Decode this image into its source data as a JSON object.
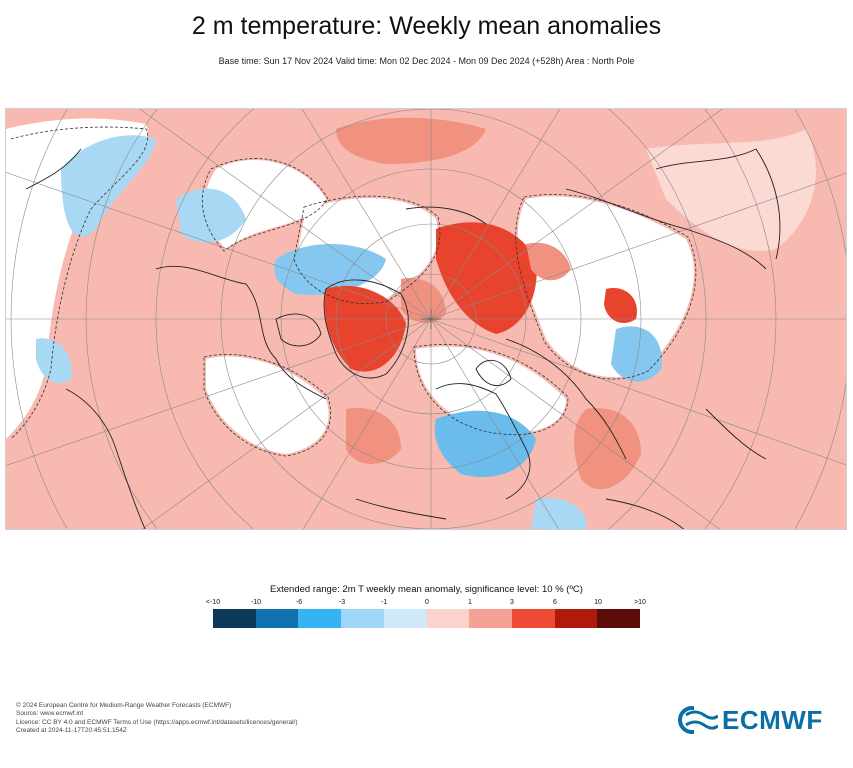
{
  "title": "2 m temperature: Weekly mean anomalies",
  "subtitle": "Base time: Sun 17 Nov 2024 Valid time: Mon 02 Dec 2024 - Mon 09 Dec 2024 (+528h) Area : North Pole",
  "map": {
    "projection": "polar-stereographic",
    "area": "North Pole",
    "colors": {
      "strong_warm": "#e8432d",
      "warm": "#f3a395",
      "mild_warm": "#f9c9c2",
      "neutral": "#ffffff",
      "cool": "#a8d8f4",
      "cold": "#6bbcec"
    }
  },
  "legend": {
    "title": "Extended range: 2m T weekly mean anomaly, significance level: 10 % (ºC)",
    "ticks": [
      "<-10",
      "-10",
      "-6",
      "-3",
      "-1",
      "0",
      "1",
      "3",
      "6",
      "10",
      ">10"
    ],
    "colors": [
      "#0d3a5a",
      "#0f72ae",
      "#35b3f3",
      "#9dd6f6",
      "#cfe9f9",
      "#fcd3cc",
      "#f6a195",
      "#ef4a33",
      "#b01a0c",
      "#5b0c06"
    ]
  },
  "footer": {
    "lines": [
      "© 2024 European Centre for Medium-Range Weather Forecasts (ECMWF)",
      "Source: www.ecmwf.int",
      "Licence: CC BY 4.0 and ECMWF Terms of Use (https://apps.ecmwf.int/datasets/licences/general/)",
      "Created at 2024-11-17T20:45:51.154Z"
    ]
  },
  "logo": {
    "text": "ECMWF",
    "icon": "ecmwf-logo-icon"
  }
}
